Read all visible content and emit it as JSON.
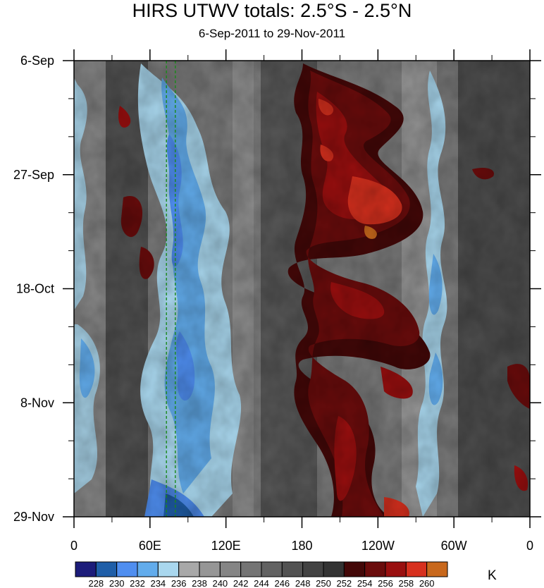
{
  "title": "HIRS UTWV totals: 2.5°S - 2.5°N",
  "subtitle": "6-Sep-2011 to 29-Nov-2011",
  "colorbar_unit": "K",
  "chart_data": {
    "type": "heatmap",
    "title": "HIRS UTWV totals: 2.5°S - 2.5°N",
    "subtitle": "6-Sep-2011 to 29-Nov-2011",
    "x_axis": {
      "ticks": [
        {
          "label": "0",
          "lon_east": 0
        },
        {
          "label": "60E",
          "lon_east": 60
        },
        {
          "label": "120E",
          "lon_east": 120
        },
        {
          "label": "180",
          "lon_east": 180
        },
        {
          "label": "120W",
          "lon_east": 240
        },
        {
          "label": "60W",
          "lon_east": 300
        },
        {
          "label": "0",
          "lon_east": 360
        }
      ],
      "range": [
        0,
        360
      ]
    },
    "y_axis": {
      "ticks": [
        "6-Sep",
        "27-Sep",
        "18-Oct",
        "8-Nov",
        "29-Nov"
      ],
      "range": [
        "6-Sep-2011",
        "29-Nov-2011"
      ],
      "direction": "time increases downward"
    },
    "colorbar": {
      "unit": "K",
      "levels": [
        228,
        230,
        232,
        234,
        236,
        238,
        240,
        242,
        244,
        246,
        248,
        250,
        252,
        254,
        256,
        258,
        260
      ],
      "colors": [
        "#1c1c7a",
        "#1f5ea8",
        "#4f8ef0",
        "#62acec",
        "#a9d7ee",
        "#a8a8a8",
        "#969696",
        "#858585",
        "#747474",
        "#626262",
        "#525252",
        "#424242",
        "#333333",
        "#430808",
        "#6a0c0c",
        "#990f0f",
        "#d7301e",
        "#c8681c"
      ]
    },
    "reference_lines": {
      "style": "dashed",
      "color": "#1a8a1a",
      "approx_lon_east": [
        73,
        80
      ]
    },
    "qualitative_features": [
      {
        "description": "Cold/moist (blue) band",
        "lon_east_range": [
          55,
          120
        ],
        "time": "throughout"
      },
      {
        "description": "Warm/dry (red) band tilting eastward",
        "lon_east_range": [
          170,
          265
        ],
        "time": "throughout, strongest late Sep to early Oct"
      },
      {
        "description": "Narrow blue band",
        "lon_east_range": [
          280,
          300
        ],
        "time": "throughout"
      }
    ]
  }
}
